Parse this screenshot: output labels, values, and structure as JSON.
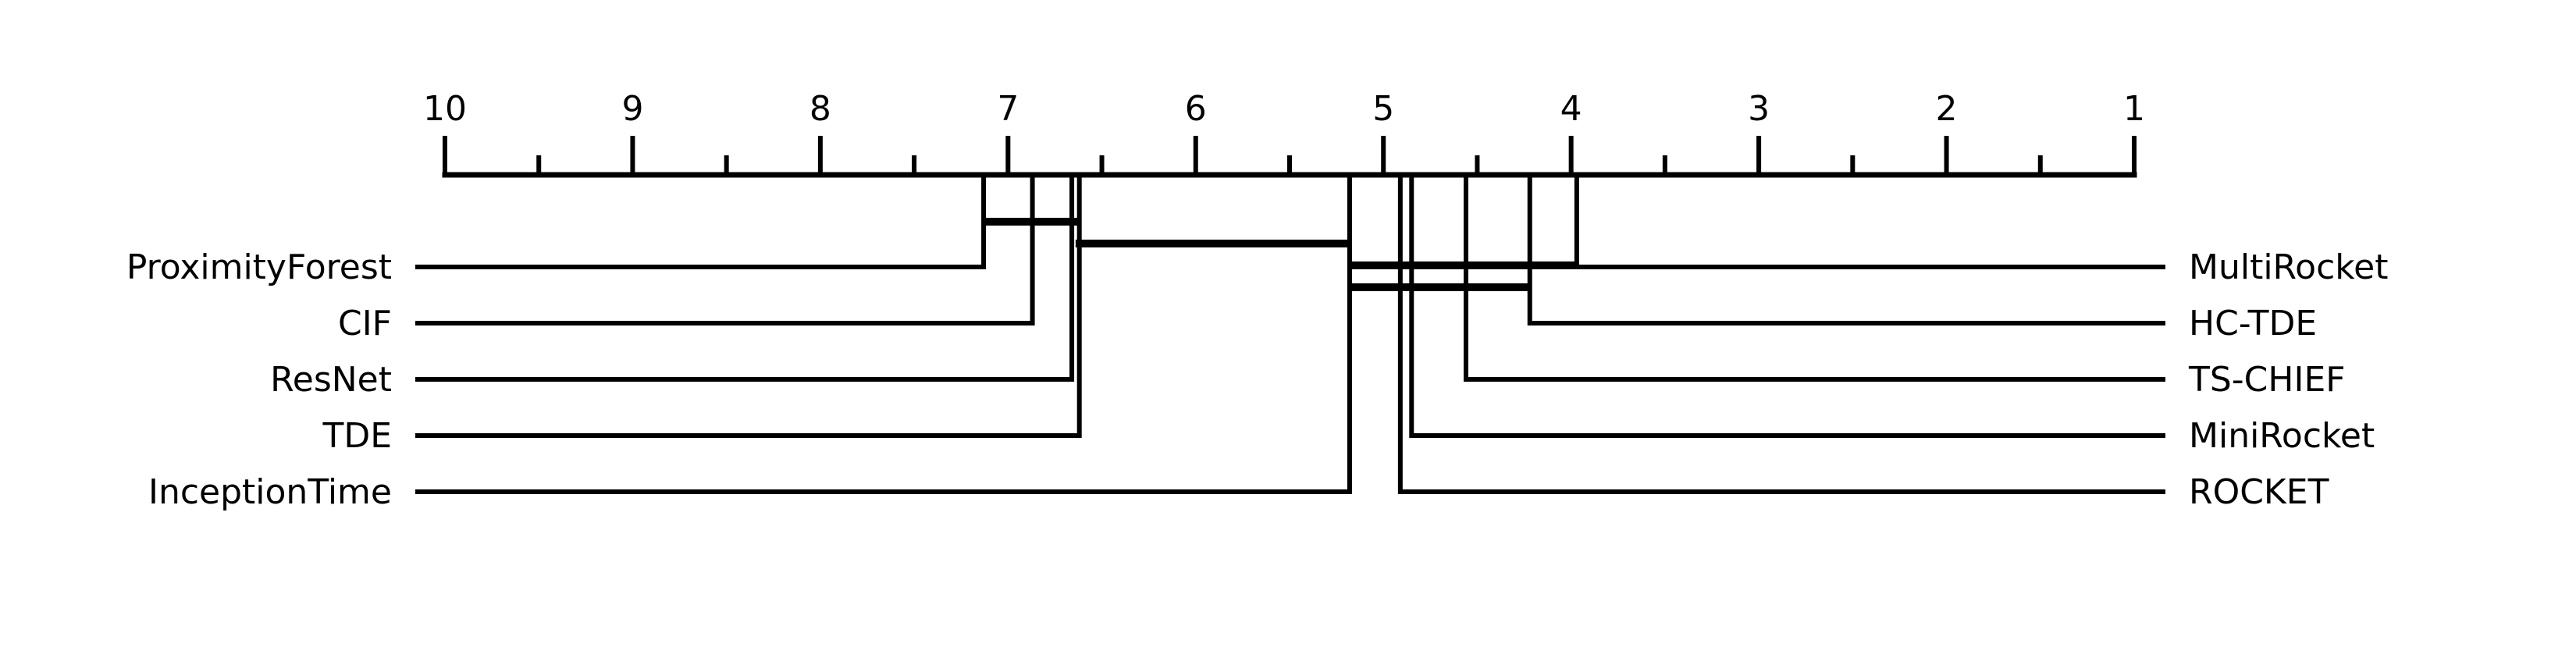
{
  "chart_data": {
    "type": "critical-difference",
    "title": "",
    "xlabel": "",
    "ylabel": "",
    "axis": {
      "min": 1,
      "max": 10,
      "reversed": true,
      "major_ticks": [
        "10",
        "9",
        "8",
        "7",
        "6",
        "5",
        "4",
        "3",
        "2",
        "1"
      ],
      "minor_ticks": [
        9.5,
        8.5,
        7.5,
        6.5,
        5.5,
        4.5,
        3.5,
        2.5,
        1.5
      ]
    },
    "methods_left": [
      {
        "name": "ProximityForest",
        "rank": 7.13
      },
      {
        "name": "CIF",
        "rank": 6.87
      },
      {
        "name": "ResNet",
        "rank": 6.66
      },
      {
        "name": "TDE",
        "rank": 6.62
      }
    ],
    "methods_left_last": {
      "name": "InceptionTime",
      "rank": 5.18
    },
    "methods_right": [
      {
        "name": "MultiRocket",
        "rank": 3.97
      },
      {
        "name": "HC-TDE",
        "rank": 4.22
      },
      {
        "name": "TS-CHIEF",
        "rank": 4.56
      },
      {
        "name": "MiniRocket",
        "rank": 4.85
      },
      {
        "name": "ROCKET",
        "rank": 4.91
      }
    ],
    "cliques": [
      {
        "from": 7.13,
        "to": 6.62
      },
      {
        "from": 6.64,
        "to": 5.18
      },
      {
        "from": 5.18,
        "to": 3.97
      },
      {
        "from": 5.18,
        "to": 4.22
      }
    ],
    "colors": {
      "ink": "#000000",
      "background": "#ffffff"
    }
  }
}
